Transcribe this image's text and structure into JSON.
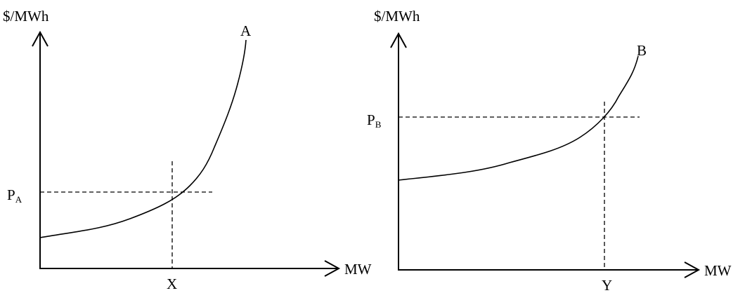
{
  "left": {
    "ylabel": "$/MWh",
    "xlabel": "MW",
    "curve_label": "A",
    "price_label": "P",
    "price_sub": "A",
    "quantity_label": "X"
  },
  "right": {
    "ylabel": "$/MWh",
    "xlabel": "MW",
    "curve_label": "B",
    "price_label": "P",
    "price_sub": "B",
    "quantity_label": "Y"
  }
}
